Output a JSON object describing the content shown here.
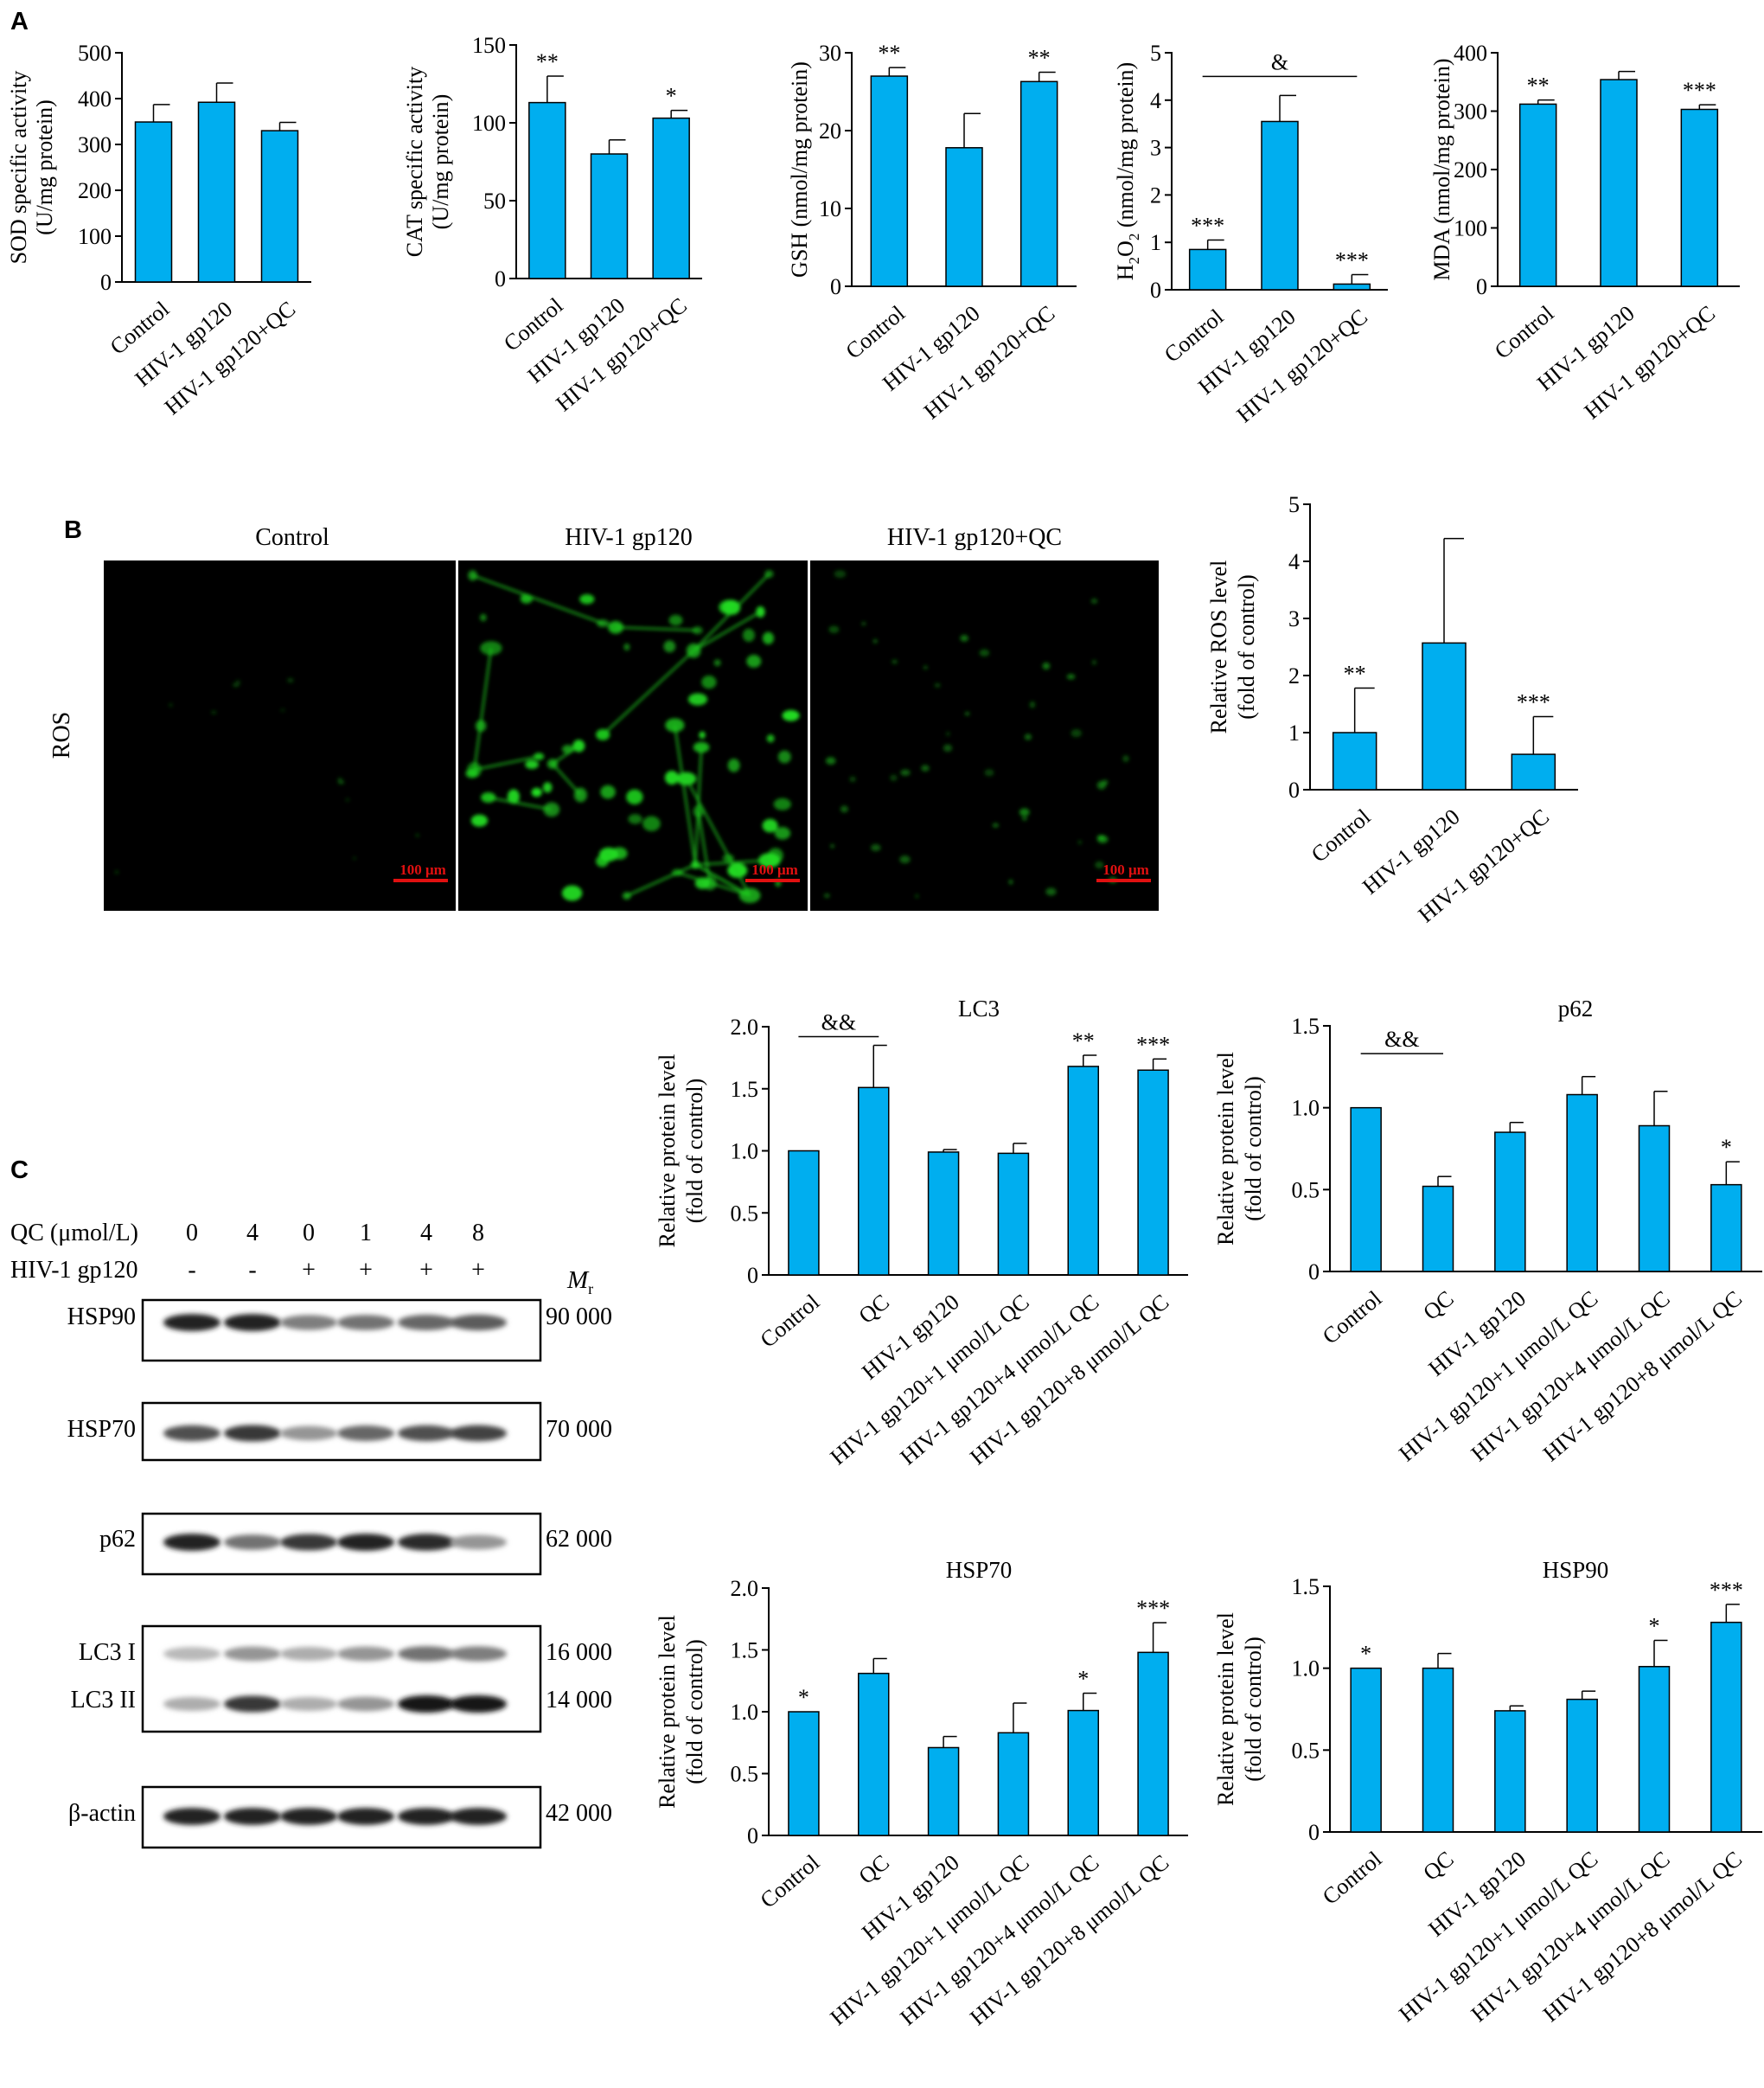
{
  "panels": {
    "A": "A",
    "B": "B",
    "C": "C"
  },
  "colors": {
    "bar": "#00aeef",
    "axis": "#000000",
    "scalebar": "#e01010",
    "cells": "#22dd22"
  },
  "chart_data": [
    {
      "id": "sod",
      "type": "bar",
      "title": "",
      "xlabel": "",
      "ylabel": [
        "SOD specific activity",
        "(U/mg protein)"
      ],
      "categories": [
        "Control",
        "HIV-1 gp120",
        "HIV-1 gp120+QC"
      ],
      "values": [
        349,
        392,
        330
      ],
      "errors": [
        38,
        42,
        18
      ],
      "ylim": [
        0,
        500
      ],
      "yticks": [
        0,
        100,
        200,
        300,
        400,
        500
      ],
      "annotations": [
        "",
        "",
        ""
      ],
      "brackets": []
    },
    {
      "id": "cat",
      "type": "bar",
      "title": "",
      "xlabel": "",
      "ylabel": [
        "CAT specific activity",
        "(U/mg protein)"
      ],
      "categories": [
        "Control",
        "HIV-1 gp120",
        "HIV-1 gp120+QC"
      ],
      "values": [
        113,
        80,
        103
      ],
      "errors": [
        17,
        9,
        5
      ],
      "ylim": [
        0,
        150
      ],
      "yticks": [
        0,
        50,
        100,
        150
      ],
      "annotations": [
        "**",
        "",
        "*"
      ],
      "brackets": []
    },
    {
      "id": "gsh",
      "type": "bar",
      "title": "",
      "xlabel": "",
      "ylabel": [
        "GSH (nmol/mg protein)"
      ],
      "categories": [
        "Control",
        "HIV-1 gp120",
        "HIV-1 gp120+QC"
      ],
      "values": [
        27,
        17.8,
        26.3
      ],
      "errors": [
        1.1,
        4.4,
        1.2
      ],
      "ylim": [
        0,
        30
      ],
      "yticks": [
        0,
        10,
        20,
        30
      ],
      "annotations": [
        "**",
        "",
        "**"
      ],
      "brackets": []
    },
    {
      "id": "h2o2",
      "type": "bar",
      "title": "",
      "xlabel": "",
      "ylabel": [
        "H2O2 (nmol/mg protein)"
      ],
      "categories": [
        "Control",
        "HIV-1 gp120",
        "HIV-1 gp120+QC"
      ],
      "values": [
        0.85,
        3.55,
        0.12
      ],
      "errors": [
        0.2,
        0.55,
        0.2
      ],
      "ylim": [
        0,
        5
      ],
      "yticks": [
        0,
        1,
        2,
        3,
        4,
        5
      ],
      "annotations": [
        "***",
        "",
        "***"
      ],
      "brackets": [
        {
          "from": 0,
          "to": 2,
          "y": 4.5,
          "label": "&"
        }
      ]
    },
    {
      "id": "mda",
      "type": "bar",
      "title": "",
      "xlabel": "",
      "ylabel": [
        "MDA (nmol/mg protein)"
      ],
      "categories": [
        "Control",
        "HIV-1 gp120",
        "HIV-1 gp120+QC"
      ],
      "values": [
        312,
        354,
        303
      ],
      "errors": [
        7,
        14,
        8
      ],
      "ylim": [
        0,
        400
      ],
      "yticks": [
        0,
        100,
        200,
        300,
        400
      ],
      "annotations": [
        "**",
        "",
        "***"
      ],
      "brackets": []
    },
    {
      "id": "ros",
      "type": "bar",
      "title": "",
      "xlabel": "",
      "ylabel": [
        "Relative ROS level",
        "(fold of control)"
      ],
      "categories": [
        "Control",
        "HIV-1 gp120",
        "HIV-1 gp120+QC"
      ],
      "values": [
        1,
        2.57,
        0.62
      ],
      "errors": [
        0.78,
        1.83,
        0.66
      ],
      "ylim": [
        0,
        5
      ],
      "yticks": [
        0,
        1,
        2,
        3,
        4,
        5
      ],
      "annotations": [
        "**",
        "",
        "***"
      ],
      "brackets": []
    },
    {
      "id": "lc3",
      "type": "bar",
      "title": "LC3",
      "xlabel": "",
      "ylabel": [
        "Relative protein level",
        "(fold of control)"
      ],
      "categories": [
        "Control",
        "QC",
        "HIV-1 gp120",
        "HIV-1 gp120+1 μmol/L QC",
        "HIV-1 gp120+4 μmol/L QC",
        "HIV-1 gp120+8 μmol/L QC"
      ],
      "values": [
        1.0,
        1.51,
        0.99,
        0.98,
        1.68,
        1.65
      ],
      "errors": [
        0,
        0.34,
        0.02,
        0.08,
        0.09,
        0.09
      ],
      "ylim": [
        0,
        2.0
      ],
      "yticks": [
        "0",
        "0.5",
        "1.0",
        "1.5",
        "2.0"
      ],
      "annotations": [
        "",
        "",
        "",
        "",
        "**",
        "***"
      ],
      "brackets": [
        {
          "from": 0,
          "to": 1,
          "y": 1.92,
          "label": "&&"
        }
      ]
    },
    {
      "id": "p62",
      "type": "bar",
      "title": "p62",
      "xlabel": "",
      "ylabel": [
        "Relative protein level",
        "(fold of control)"
      ],
      "categories": [
        "Control",
        "QC",
        "HIV-1 gp120",
        "HIV-1 gp120+1 μmol/L QC",
        "HIV-1 gp120+4 μmol/L QC",
        "HIV-1 gp120+8 μmol/L QC"
      ],
      "values": [
        1.0,
        0.52,
        0.85,
        1.08,
        0.89,
        0.53
      ],
      "errors": [
        0,
        0.06,
        0.06,
        0.11,
        0.21,
        0.14
      ],
      "ylim": [
        0,
        1.5
      ],
      "yticks": [
        "0",
        "0.5",
        "1.0",
        "1.5"
      ],
      "annotations": [
        "",
        "",
        "",
        "",
        "",
        "*"
      ],
      "brackets": [
        {
          "from": 0,
          "to": 1,
          "y": 1.33,
          "label": "&&"
        }
      ]
    },
    {
      "id": "hsp70",
      "type": "bar",
      "title": "HSP70",
      "xlabel": "",
      "ylabel": [
        "Relative protein level",
        "(fold of control)"
      ],
      "categories": [
        "Control",
        "QC",
        "HIV-1 gp120",
        "HIV-1 gp120+1 μmol/L QC",
        "HIV-1 gp120+4 μmol/L QC",
        "HIV-1 gp120+8 μmol/L QC"
      ],
      "values": [
        1.0,
        1.31,
        0.71,
        0.83,
        1.01,
        1.48
      ],
      "errors": [
        0,
        0.12,
        0.09,
        0.24,
        0.14,
        0.24
      ],
      "ylim": [
        0,
        2.0
      ],
      "yticks": [
        "0",
        "0.5",
        "1.0",
        "1.5",
        "2.0"
      ],
      "annotations": [
        "*",
        "",
        "",
        "",
        "*",
        "***"
      ],
      "brackets": []
    },
    {
      "id": "hsp90",
      "type": "bar",
      "title": "HSP90",
      "xlabel": "",
      "ylabel": [
        "Relative protein level",
        "(fold of control)"
      ],
      "categories": [
        "Control",
        "QC",
        "HIV-1 gp120",
        "HIV-1 gp120+1 μmol/L QC",
        "HIV-1 gp120+4 μmol/L QC",
        "HIV-1 gp120+8 μmol/L QC"
      ],
      "values": [
        1.0,
        1.0,
        0.74,
        0.81,
        1.01,
        1.28
      ],
      "errors": [
        0,
        0.09,
        0.03,
        0.05,
        0.16,
        0.11
      ],
      "ylim": [
        0,
        1.5
      ],
      "yticks": [
        "0",
        "0.5",
        "1.0",
        "1.5"
      ],
      "annotations": [
        "*",
        "",
        "",
        "",
        "*",
        "***"
      ],
      "brackets": []
    }
  ],
  "micrographs": {
    "row_label": "ROS",
    "columns": [
      "Control",
      "HIV-1 gp120",
      "HIV-1 gp120+QC"
    ],
    "scalebar": "100 μm"
  },
  "western": {
    "qc_label": "QC (μmol/L)",
    "gp120_label": "HIV-1 gp120",
    "qc_values": [
      "0",
      "4",
      "0",
      "1",
      "4",
      "8"
    ],
    "gp120_values": [
      "-",
      "-",
      "+",
      "+",
      "+",
      "+"
    ],
    "mr_label": "M",
    "mr_sub": "r",
    "blots": [
      {
        "name": "HSP90",
        "mr": "90 000",
        "intensity": [
          0.95,
          0.95,
          0.55,
          0.6,
          0.65,
          0.7
        ]
      },
      {
        "name": "HSP70",
        "mr": "70 000",
        "intensity": [
          0.75,
          0.85,
          0.45,
          0.65,
          0.75,
          0.8
        ]
      },
      {
        "name": "p62",
        "mr": "62 000",
        "intensity": [
          0.95,
          0.6,
          0.85,
          0.95,
          0.9,
          0.45
        ]
      },
      {
        "name": "LC3 I",
        "mr": "16 000",
        "intensity": [
          0.3,
          0.45,
          0.35,
          0.45,
          0.6,
          0.55
        ]
      },
      {
        "name": "LC3 II",
        "mr": "14 000",
        "intensity": [
          0.35,
          0.85,
          0.35,
          0.45,
          1.0,
          1.0
        ]
      },
      {
        "name": "β-actin",
        "mr": "42 000",
        "intensity": [
          0.95,
          0.95,
          0.95,
          0.95,
          0.95,
          0.95
        ]
      }
    ]
  }
}
